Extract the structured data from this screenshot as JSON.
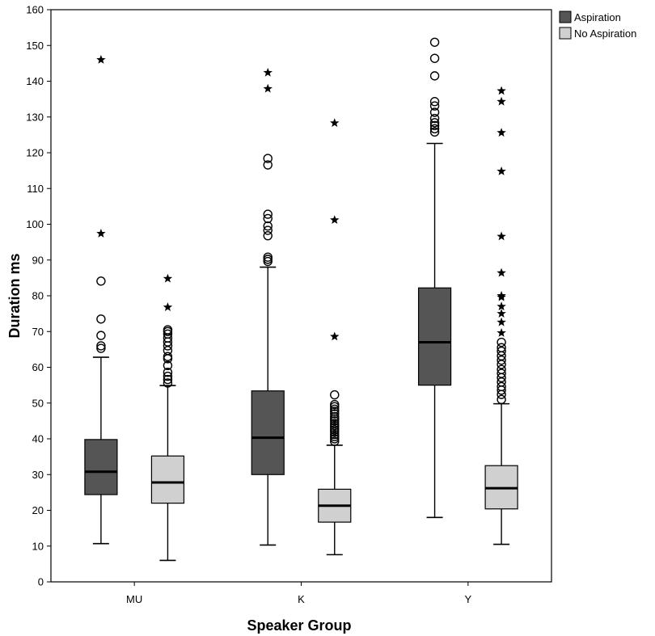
{
  "chart_data": {
    "type": "boxplot",
    "xlabel": "Speaker Group",
    "ylabel": "Duration ms",
    "ylim": [
      0,
      160
    ],
    "yticks": [
      0,
      10,
      20,
      30,
      40,
      50,
      60,
      70,
      80,
      90,
      100,
      110,
      120,
      130,
      140,
      150,
      160
    ],
    "categories": [
      "MU",
      "K",
      "Y"
    ],
    "grid": false,
    "legend_position": "top-right",
    "series": [
      {
        "name": "Aspiration",
        "color": "#555555",
        "boxes": [
          {
            "category": "MU",
            "min": 10.7,
            "q1": 24.4,
            "median": 30.8,
            "q3": 39.8,
            "max": 62.8,
            "outliers": [
              65.3,
              66.0,
              68.9,
              73.5,
              84.1
            ],
            "extremes": [
              97.4,
              146.0
            ]
          },
          {
            "category": "K",
            "min": 10.3,
            "q1": 30.0,
            "median": 40.3,
            "q3": 53.4,
            "max": 88.0,
            "outliers": [
              89.6,
              90.2,
              90.8,
              96.8,
              98.3,
              99.5,
              101.6,
              102.8,
              116.6,
              118.4
            ],
            "extremes": [
              137.9,
              142.4
            ]
          },
          {
            "category": "Y",
            "min": 18.0,
            "q1": 55.0,
            "median": 67.0,
            "q3": 82.2,
            "max": 122.6,
            "outliers": [
              125.8,
              126.7,
              127.6,
              128.4,
              129.6,
              131.3,
              133.1,
              134.3,
              141.5,
              146.4,
              150.9
            ],
            "extremes": []
          }
        ]
      },
      {
        "name": "No Aspiration",
        "color": "#d0d0d0",
        "boxes": [
          {
            "category": "MU",
            "min": 6.0,
            "q1": 22.0,
            "median": 27.8,
            "q3": 35.2,
            "max": 54.9,
            "outliers": [
              55.6,
              56.6,
              57.5,
              58.6,
              60.5,
              62.4,
              63.0,
              64.7,
              66.0,
              67.1,
              68.2,
              69.3,
              70.0,
              70.5
            ],
            "extremes": [
              76.8,
              84.8
            ]
          },
          {
            "category": "K",
            "min": 7.6,
            "q1": 16.7,
            "median": 21.3,
            "q3": 25.9,
            "max": 38.2,
            "outliers": [
              39.3,
              40.0,
              40.6,
              41.2,
              41.9,
              42.5,
              43.1,
              43.7,
              44.3,
              45.0,
              45.6,
              46.2,
              47.0,
              47.7,
              48.3,
              49.0,
              49.6,
              52.3
            ],
            "extremes": [
              68.6,
              101.2,
              128.3
            ]
          },
          {
            "category": "Y",
            "min": 10.5,
            "q1": 20.4,
            "median": 26.2,
            "q3": 32.5,
            "max": 49.8,
            "outliers": [
              51.0,
              52.4,
              53.6,
              54.6,
              55.9,
              57.1,
              58.3,
              59.4,
              60.8,
              62.0,
              63.2,
              64.5,
              65.5,
              67.0
            ],
            "extremes": [
              69.6,
              72.6,
              75.0,
              77.0,
              79.6,
              80.0,
              86.4,
              96.6,
              114.8,
              125.6,
              134.3,
              137.3
            ]
          }
        ]
      }
    ]
  }
}
